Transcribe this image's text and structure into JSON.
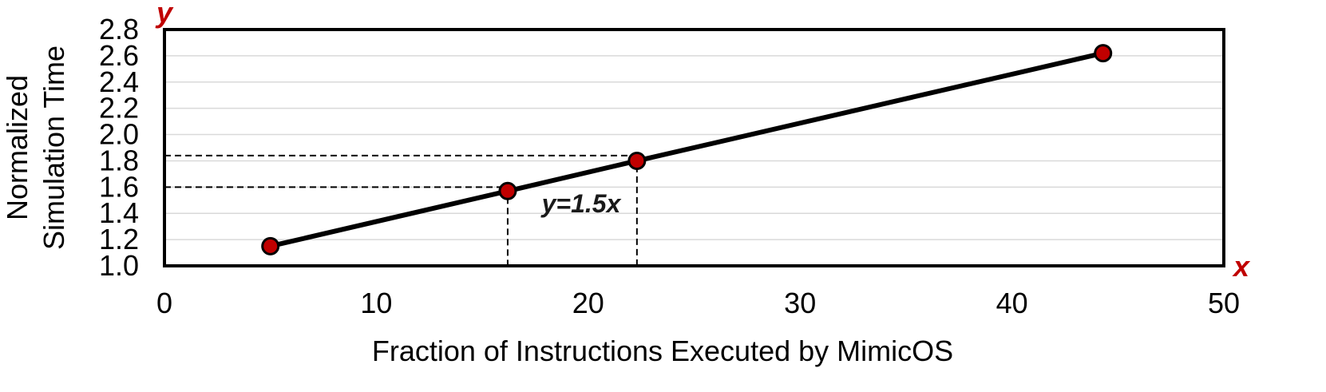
{
  "chart_data": {
    "type": "line",
    "xlabel": "Fraction of Instructions Executed by MimicOS",
    "ylabel": [
      "Normalized",
      "Simulation Time"
    ],
    "xlim": [
      0,
      50
    ],
    "ylim": [
      1.0,
      2.8
    ],
    "xticks": [
      "0",
      "10",
      "20",
      "30",
      "40",
      "50"
    ],
    "yticks": [
      "1.0",
      "1.2",
      "1.4",
      "1.6",
      "1.8",
      "2.0",
      "2.2",
      "2.4",
      "2.6",
      "2.8"
    ],
    "grid": true,
    "series": [
      {
        "x": [
          5.0,
          16.2,
          22.3,
          44.3
        ],
        "y": [
          1.15,
          1.57,
          1.8,
          2.62
        ]
      }
    ],
    "reference_lines": [
      {
        "x": 16.2,
        "y": 1.6
      },
      {
        "x": 22.3,
        "y": 1.84
      }
    ],
    "annotation": "y=1.5x",
    "axis_letters": {
      "x": "x",
      "y": "y"
    },
    "colors": {
      "line": "#000000",
      "marker_fill": "#c00000",
      "marker_stroke": "#000000",
      "grid": "#d9d9d9",
      "axis_letter": "#c00000"
    }
  }
}
